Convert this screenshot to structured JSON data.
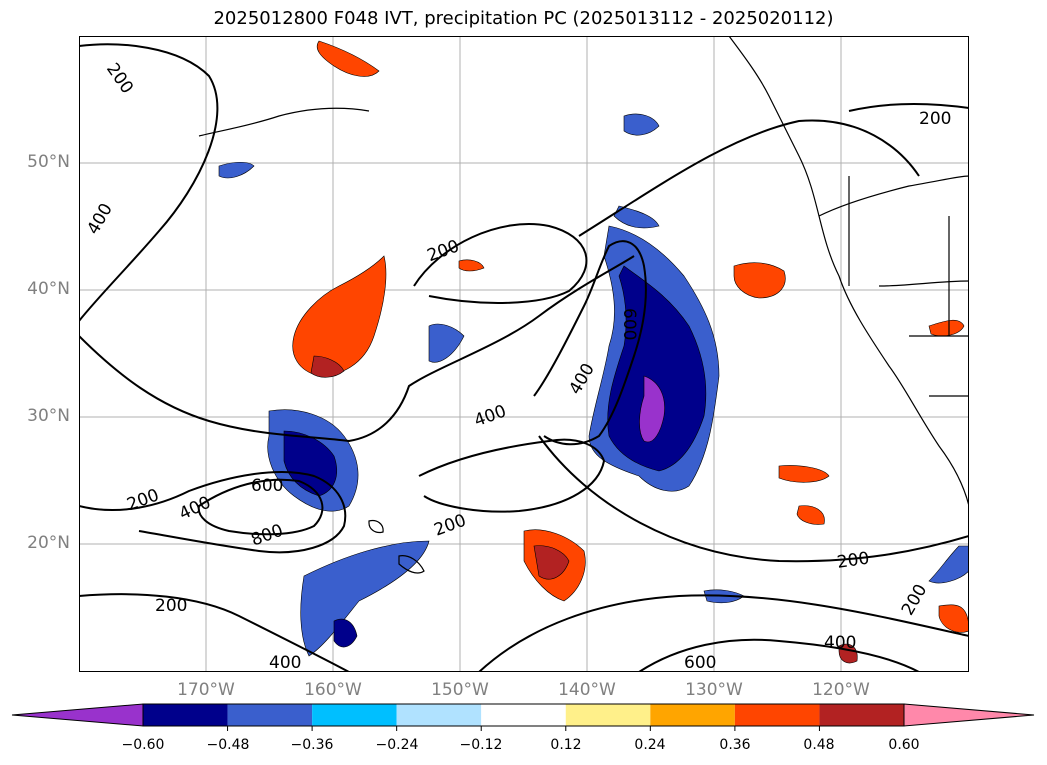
{
  "title": "2025012800 F048 IVT, precipitation PC (2025013112 - 2025020112)",
  "lat_labels": [
    "50°N",
    "40°N",
    "30°N",
    "20°N"
  ],
  "lon_labels": [
    "170°W",
    "160°W",
    "150°W",
    "140°W",
    "130°W",
    "120°W"
  ],
  "contour_labels": [
    "200",
    "200",
    "400",
    "200",
    "400",
    "600",
    "400",
    "200",
    "400",
    "600",
    "800",
    "200",
    "200",
    "400",
    "600",
    "200",
    "200",
    "400",
    "200"
  ],
  "colorbar": {
    "ticks": [
      "−0.60",
      "−0.48",
      "−0.36",
      "−0.24",
      "−0.12",
      "0.12",
      "0.24",
      "0.36",
      "0.48",
      "0.60"
    ],
    "colors": [
      "#9932cc",
      "#00008b",
      "#3a5fcd",
      "#00bfff",
      "#b0e2ff",
      "#ffffff",
      "#fff08a",
      "#ffa500",
      "#ff4500",
      "#b22222",
      "#ff88aa"
    ]
  }
}
